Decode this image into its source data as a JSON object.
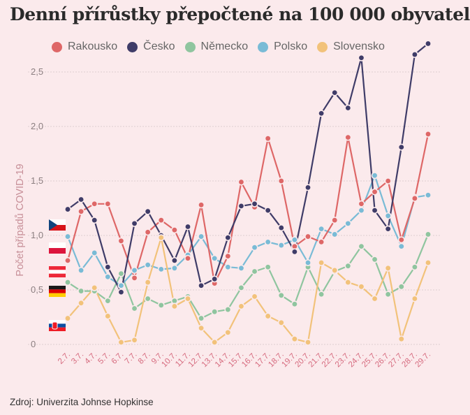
{
  "title": "Denní přírůstky přepočtené na 100 000 obyvatel",
  "source": "Zdroj: Univerzita Johnse Hopkinse",
  "legend": [
    {
      "name": "Rakousko",
      "color": "#de6767"
    },
    {
      "name": "Česko",
      "color": "#3f3c68"
    },
    {
      "name": "Německo",
      "color": "#8fc59f"
    },
    {
      "name": "Polsko",
      "color": "#79bbd6"
    },
    {
      "name": "Slovensko",
      "color": "#f2c27a"
    }
  ],
  "flags": [
    "czech-flag",
    "polish-flag",
    "austrian-flag",
    "german-flag",
    "slovak-flag"
  ],
  "chart_data": {
    "type": "line",
    "title": "Denní přírůstky přepočtené na 100 000 obyvatel",
    "ylabel": "Počet případů COVID-19",
    "xlabel": "",
    "ylim": [
      0,
      2.75
    ],
    "y_ticks": [
      0,
      0.5,
      1.0,
      1.5,
      2.0,
      2.5
    ],
    "y_tick_labels": [
      "0",
      "0,5",
      "1,0",
      "1,5",
      "2,0",
      "2,5"
    ],
    "grid": true,
    "legend_position": "top",
    "categories": [
      "2.7.",
      "3.7.",
      "4.7.",
      "5.7.",
      "6.7.",
      "7.7.",
      "8.7.",
      "9.7.",
      "10.7.",
      "11.7.",
      "12.7.",
      "13.7.",
      "14.7.",
      "15.7.",
      "16.7.",
      "17.7.",
      "18.7.",
      "19.7.",
      "20.7.",
      "21.7.",
      "22.7.",
      "23.7.",
      "24.7.",
      "25.7.",
      "26.7.",
      "27.7.",
      "28.7.",
      "29.7."
    ],
    "series": [
      {
        "name": "Rakousko",
        "color": "#de6767",
        "values": [
          0.77,
          1.22,
          1.29,
          1.29,
          0.95,
          0.61,
          1.03,
          1.14,
          1.05,
          0.79,
          1.28,
          0.56,
          0.81,
          1.49,
          1.26,
          1.89,
          1.5,
          0.9,
          0.99,
          0.94,
          1.14,
          1.9,
          1.29,
          1.4,
          1.5,
          0.96,
          1.34,
          1.93
        ]
      },
      {
        "name": "Česko",
        "color": "#3f3c68",
        "values": [
          1.24,
          1.33,
          1.14,
          0.71,
          0.48,
          1.11,
          1.22,
          1.0,
          0.77,
          1.08,
          0.54,
          0.6,
          0.98,
          1.27,
          1.29,
          1.23,
          1.07,
          0.85,
          1.44,
          2.12,
          2.31,
          2.17,
          2.63,
          1.23,
          1.06,
          1.81,
          2.66,
          2.76
        ]
      },
      {
        "name": "Německo",
        "color": "#8fc59f",
        "values": [
          0.57,
          0.49,
          0.49,
          0.4,
          0.65,
          0.33,
          0.42,
          0.36,
          0.4,
          0.44,
          0.24,
          0.3,
          0.32,
          0.52,
          0.67,
          0.71,
          0.45,
          0.37,
          0.71,
          0.46,
          0.67,
          0.72,
          0.9,
          0.78,
          0.46,
          0.53,
          0.71,
          1.01
        ]
      },
      {
        "name": "Polsko",
        "color": "#79bbd6",
        "values": [
          0.99,
          0.68,
          0.84,
          0.62,
          0.54,
          0.68,
          0.73,
          0.69,
          0.7,
          0.82,
          0.99,
          0.79,
          0.71,
          0.7,
          0.89,
          0.94,
          0.91,
          0.96,
          0.75,
          1.06,
          1.01,
          1.11,
          1.23,
          1.55,
          1.18,
          0.9,
          1.35,
          1.37
        ]
      },
      {
        "name": "Slovensko",
        "color": "#f2c27a",
        "values": [
          0.24,
          0.38,
          0.52,
          0.26,
          0.02,
          0.04,
          0.57,
          0.98,
          0.35,
          0.42,
          0.15,
          0.02,
          0.11,
          0.35,
          0.44,
          0.26,
          0.2,
          0.05,
          0.02,
          0.75,
          0.68,
          0.57,
          0.53,
          0.42,
          0.7,
          0.05,
          0.42,
          0.75
        ]
      }
    ]
  }
}
